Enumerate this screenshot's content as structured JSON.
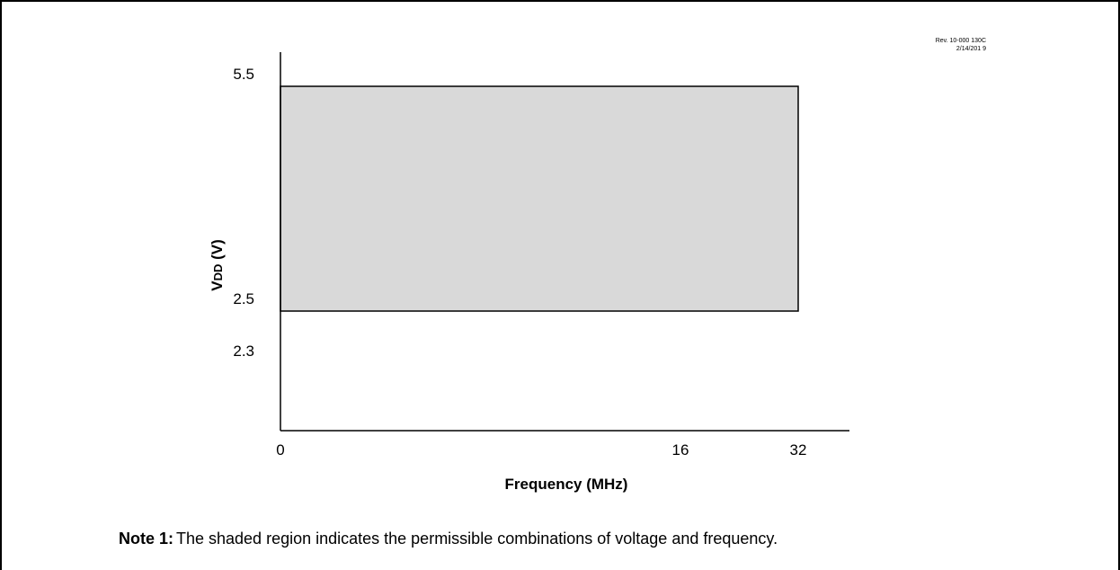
{
  "chart_data": {
    "type": "area",
    "title": "",
    "xlabel": "Frequency (MHz)",
    "ylabel": "VDD (V)",
    "ylabel_main": "V",
    "ylabel_sub": "DD",
    "ylabel_unit": " (V)",
    "x_ticks": [
      "0",
      "16",
      "32"
    ],
    "y_ticks": [
      "5.5",
      "2.5",
      "2.3"
    ],
    "region": {
      "x": [
        0,
        32
      ],
      "y": [
        2.5,
        5.5
      ]
    },
    "shade_color": "#d9d9d9"
  },
  "revision": {
    "line1": "Rev. 10-000 130C",
    "line2": "2/14/201 9"
  },
  "note": {
    "label": "Note 1:",
    "text": "The shaded region indicates the permissible combinations of voltage and frequency."
  }
}
